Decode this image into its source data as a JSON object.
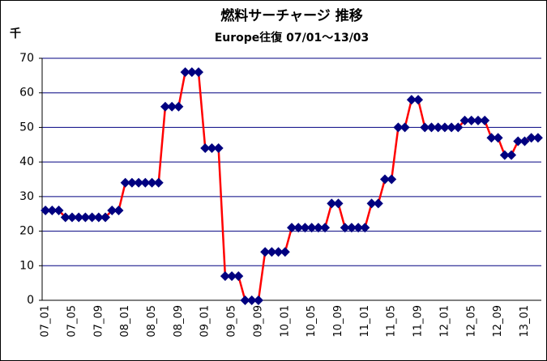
{
  "chart_data": {
    "type": "line",
    "title": "燃料サーチャージ 推移",
    "subtitle": "Europe往復 07/01～13/03",
    "y_label": "千",
    "categories": [
      "07_01",
      null,
      null,
      null,
      "07_05",
      null,
      null,
      null,
      "07_09",
      null,
      null,
      null,
      "08_01",
      null,
      null,
      null,
      "08_05",
      null,
      null,
      null,
      "08_09",
      null,
      null,
      null,
      "09_01",
      null,
      null,
      null,
      "09_05",
      null,
      null,
      null,
      "09_09",
      null,
      null,
      null,
      "10_01",
      null,
      null,
      null,
      "10_05",
      null,
      null,
      null,
      "10_09",
      null,
      null,
      null,
      "11_01",
      null,
      null,
      null,
      "11_05",
      null,
      null,
      null,
      "11_09",
      null,
      null,
      null,
      "12_01",
      null,
      null,
      null,
      "12_05",
      null,
      null,
      null,
      "12_09",
      null,
      null,
      null,
      "13_01",
      null,
      null
    ],
    "series": [
      {
        "name": "燃料サーチャージ",
        "color": "#ff0000",
        "marker_color": "#000080",
        "values": [
          26,
          26,
          26,
          24,
          24,
          24,
          24,
          24,
          24,
          24,
          26,
          26,
          34,
          34,
          34,
          34,
          34,
          34,
          56,
          56,
          56,
          66,
          66,
          66,
          44,
          44,
          44,
          7,
          7,
          7,
          0,
          0,
          0,
          14,
          14,
          14,
          14,
          21,
          21,
          21,
          21,
          21,
          21,
          28,
          28,
          21,
          21,
          21,
          21,
          28,
          28,
          35,
          35,
          50,
          50,
          58,
          58,
          50,
          50,
          50,
          50,
          50,
          50,
          52,
          52,
          52,
          52,
          47,
          47,
          42,
          42,
          46,
          46,
          47,
          47
        ]
      }
    ],
    "ylim": [
      0,
      70
    ],
    "yticks": [
      0,
      10,
      20,
      30,
      40,
      50,
      60,
      70
    ],
    "grid": true
  }
}
